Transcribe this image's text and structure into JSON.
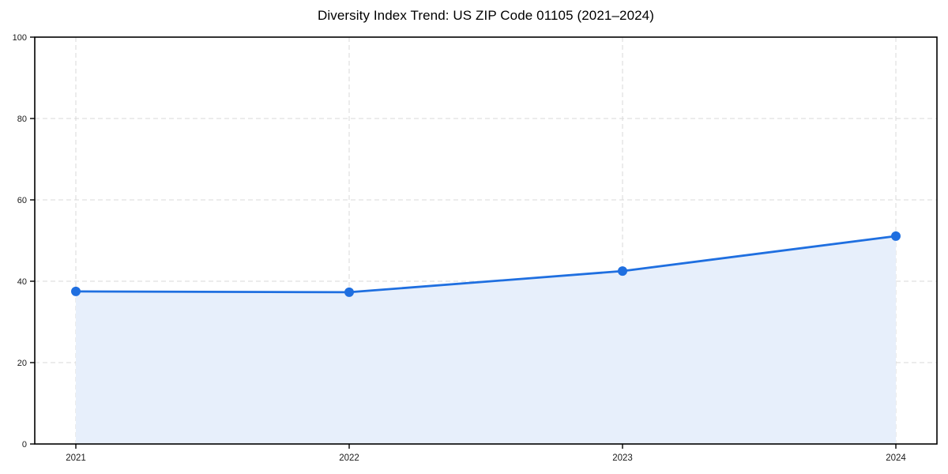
{
  "chart_data": {
    "type": "line",
    "title": "Diversity Index Trend: US ZIP Code 01105 (2021–2024)",
    "categories": [
      "2021",
      "2022",
      "2023",
      "2024"
    ],
    "series": [
      {
        "name": "Diversity Index",
        "values": [
          37.5,
          37.3,
          42.5,
          51.1
        ]
      }
    ],
    "xlabel": "",
    "ylabel": "",
    "ylim": [
      0,
      100
    ],
    "yticks": [
      0,
      20,
      40,
      60,
      80,
      100
    ],
    "grid": true,
    "grid_style": "dashed",
    "area_fill": true,
    "markers": true,
    "legend_position": "none"
  },
  "colors": {
    "line": "#1f6fe0",
    "marker": "#1f6fe0",
    "area_fill": "#e7effb",
    "grid": "#d9d9d9",
    "axis": "#000000",
    "tick_label": "#1a1a1a",
    "background": "#ffffff"
  }
}
